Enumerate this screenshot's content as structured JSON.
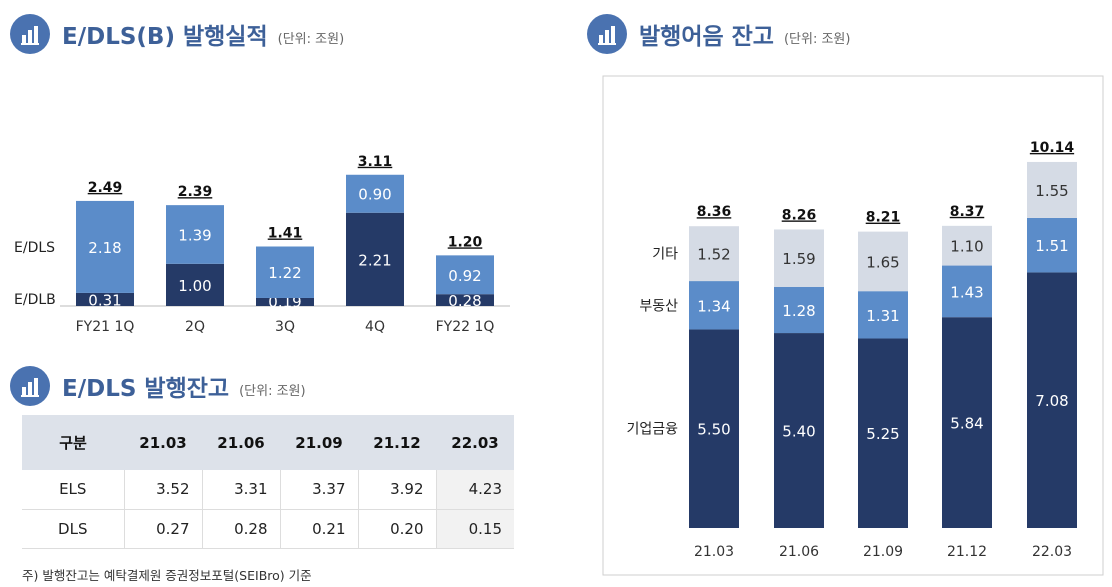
{
  "section1": {
    "title": "E/DLS(B) 발행실적",
    "unit": "(단위: 조원)"
  },
  "section2": {
    "title": "E/DLS 발행잔고",
    "unit": "(단위: 조원)"
  },
  "section3": {
    "title": "발행어음 잔고",
    "unit": "(단위: 조원)"
  },
  "colors": {
    "dark": "#253a67",
    "mid": "#5b8cc9",
    "light": "#d5dbe5",
    "accent": "#3d6098"
  },
  "chart_data": [
    {
      "type": "bar",
      "stacked": true,
      "title": "E/DLS(B) 발행실적",
      "categories": [
        "FY21 1Q",
        "2Q",
        "3Q",
        "4Q",
        "FY22 1Q"
      ],
      "series": [
        {
          "name": "E/DLB",
          "values": [
            0.31,
            1.0,
            0.19,
            2.21,
            0.28
          ]
        },
        {
          "name": "E/DLS",
          "values": [
            2.18,
            1.39,
            1.22,
            0.9,
            0.92
          ]
        }
      ],
      "totals": [
        "2.49",
        "2.39",
        "1.41",
        "3.11",
        "1.20"
      ],
      "labels": {
        "E/DLB": [
          "0.31",
          "1.00",
          "0.19",
          "2.21",
          "0.28"
        ],
        "E/DLS": [
          "2.18",
          "1.39",
          "1.22",
          "0.90",
          "0.92"
        ]
      }
    },
    {
      "type": "bar",
      "stacked": true,
      "title": "발행어음 잔고",
      "categories": [
        "21.03",
        "21.06",
        "21.09",
        "21.12",
        "22.03"
      ],
      "series": [
        {
          "name": "기업금융",
          "values": [
            5.5,
            5.4,
            5.25,
            5.84,
            7.08
          ]
        },
        {
          "name": "부동산",
          "values": [
            1.34,
            1.28,
            1.31,
            1.43,
            1.51
          ]
        },
        {
          "name": "기타",
          "values": [
            1.52,
            1.59,
            1.65,
            1.1,
            1.55
          ]
        }
      ],
      "totals": [
        "8.36",
        "8.26",
        "8.21",
        "8.37",
        "10.14"
      ],
      "labels": {
        "기업금융": [
          "5.50",
          "5.40",
          "5.25",
          "5.84",
          "7.08"
        ],
        "부동산": [
          "1.34",
          "1.28",
          "1.31",
          "1.43",
          "1.51"
        ],
        "기타": [
          "1.52",
          "1.59",
          "1.65",
          "1.10",
          "1.55"
        ]
      }
    },
    {
      "type": "table",
      "title": "E/DLS 발행잔고",
      "columns": [
        "구분",
        "21.03",
        "21.06",
        "21.09",
        "21.12",
        "22.03"
      ],
      "rows": [
        [
          "ELS",
          "3.52",
          "3.31",
          "3.37",
          "3.92",
          "4.23"
        ],
        [
          "DLS",
          "0.27",
          "0.28",
          "0.21",
          "0.20",
          "0.15"
        ]
      ]
    }
  ],
  "footnote": "주) 발행잔고는 예탁결제원 증권정보포털(SEIBro) 기준"
}
